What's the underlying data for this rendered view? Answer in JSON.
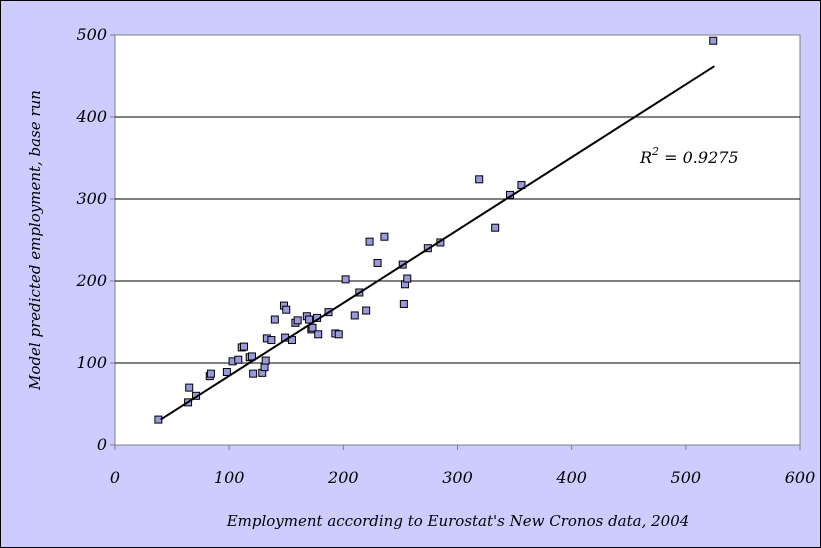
{
  "chart_data": {
    "type": "scatter",
    "title": "",
    "xlabel": "Employment according to Eurostat's New Cronos data, 2004",
    "ylabel": "Model predicted employment, base run",
    "xlim": [
      0,
      600
    ],
    "ylim": [
      0,
      500
    ],
    "x_ticks": [
      "0",
      "100",
      "200",
      "300",
      "400",
      "500",
      "600"
    ],
    "y_ticks": [
      "0",
      "100",
      "200",
      "300",
      "400",
      "500"
    ],
    "grid": "horizontal",
    "colors": {
      "background": "#ccccff",
      "plot_area": "#ffffff",
      "marker_fill": "#9999dd",
      "marker_edge": "#000000",
      "trendline": "#000000"
    },
    "annotation": {
      "base": "R",
      "sup": "2",
      "rest": " = 0.9275"
    },
    "trendline": {
      "type": "linear",
      "x": [
        40,
        525
      ],
      "y": [
        31,
        462
      ]
    },
    "points": {
      "x": [
        38,
        64,
        65,
        71,
        83,
        84,
        98,
        103,
        108,
        111,
        113,
        118,
        120,
        121,
        129,
        131,
        132,
        133,
        137,
        140,
        148,
        149,
        150,
        155,
        158,
        160,
        168,
        170,
        172,
        173,
        177,
        178,
        187,
        193,
        196,
        202,
        210,
        214,
        220,
        223,
        230,
        236,
        252,
        253,
        254,
        256,
        274,
        285,
        319,
        333,
        346,
        356,
        524
      ],
      "y": [
        31,
        52,
        70,
        60,
        84,
        87,
        89,
        102,
        104,
        119,
        120,
        107,
        108,
        87,
        88,
        95,
        103,
        130,
        128,
        153,
        170,
        131,
        165,
        128,
        149,
        152,
        157,
        153,
        141,
        143,
        155,
        135,
        162,
        136,
        135,
        202,
        158,
        186,
        164,
        248,
        222,
        254,
        220,
        172,
        196,
        203,
        240,
        247,
        324,
        265,
        305,
        317,
        493
      ]
    }
  }
}
